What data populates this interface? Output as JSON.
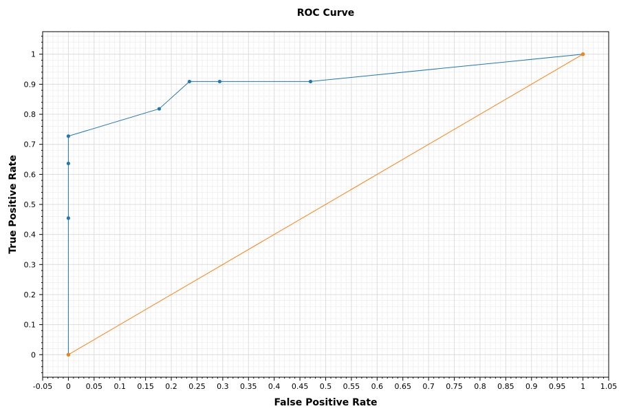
{
  "chart_data": {
    "type": "line",
    "title": "ROC Curve",
    "xlabel": "False Positive Rate",
    "ylabel": "True Positive Rate",
    "xlim": [
      -0.05,
      1.05
    ],
    "ylim": [
      -0.075,
      1.075
    ],
    "x_ticks": [
      "-0.05",
      "0",
      "0.05",
      "0.1",
      "0.15",
      "0.2",
      "0.25",
      "0.3",
      "0.35",
      "0.4",
      "0.45",
      "0.5",
      "0.55",
      "0.6",
      "0.65",
      "0.7",
      "0.75",
      "0.8",
      "0.85",
      "0.9",
      "0.95",
      "1",
      "1.05"
    ],
    "y_ticks": [
      "0",
      "0.1",
      "0.2",
      "0.3",
      "0.4",
      "0.5",
      "0.6",
      "0.7",
      "0.8",
      "0.9",
      "1"
    ],
    "grid": true,
    "series": [
      {
        "color": "#1f77b4",
        "points": [
          [
            0,
            0
          ],
          [
            0,
            0.4545
          ],
          [
            0,
            0.6364
          ],
          [
            0,
            0.7273
          ],
          [
            0.1765,
            0.8182
          ],
          [
            0.2353,
            0.9091
          ],
          [
            0.2941,
            0.9091
          ],
          [
            0.4706,
            0.9091
          ],
          [
            1,
            1
          ]
        ]
      },
      {
        "color": "#ff7f0e",
        "points": [
          [
            0,
            0
          ],
          [
            1,
            1
          ]
        ]
      }
    ]
  }
}
